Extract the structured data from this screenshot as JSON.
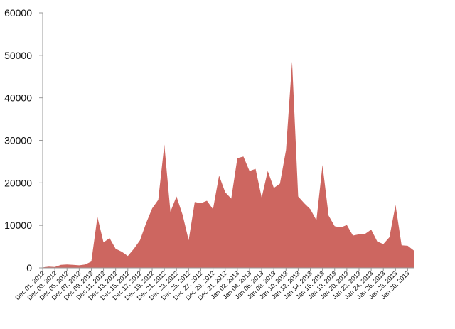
{
  "chart_data": {
    "type": "area",
    "title": "",
    "xlabel": "",
    "ylabel": "",
    "ylim": [
      0,
      60000
    ],
    "yticks": [
      0,
      10000,
      20000,
      30000,
      40000,
      50000,
      60000
    ],
    "ytick_labels": [
      "0",
      "10000",
      "20000",
      "30000",
      "40000",
      "50000",
      "60000"
    ],
    "grid": false,
    "legend": "none",
    "fill_color": "#cd6660",
    "x": [
      "Dec 01, 2012",
      "Dec 02, 2012",
      "Dec 03, 2012",
      "Dec 04, 2012",
      "Dec 05, 2012",
      "Dec 06, 2012",
      "Dec 07, 2012",
      "Dec 08, 2012",
      "Dec 09, 2012",
      "Dec 10, 2012",
      "Dec 11, 2012",
      "Dec 12, 2012",
      "Dec 13, 2012",
      "Dec 14, 2012",
      "Dec 15, 2012",
      "Dec 16, 2012",
      "Dec 17, 2012",
      "Dec 18, 2012",
      "Dec 19, 2012",
      "Dec 20, 2012",
      "Dec 21, 2012",
      "Dec 22, 2012",
      "Dec 23, 2012",
      "Dec 24, 2012",
      "Dec 25, 2012",
      "Dec 26, 2012",
      "Dec 27, 2012",
      "Dec 28, 2012",
      "Dec 29, 2012",
      "Dec 30, 2012",
      "Dec 31, 2012",
      "Jan 01, 2013",
      "Jan 02, 2013",
      "Jan 03, 2013",
      "Jan 04, 2013",
      "Jan 05, 2013",
      "Jan 06, 2013",
      "Jan 07, 2013",
      "Jan 08, 2013",
      "Jan 09, 2013",
      "Jan 10, 2013",
      "Jan 11, 2013",
      "Jan 12, 2013",
      "Jan 13, 2013",
      "Jan 14, 2013",
      "Jan 15, 2013",
      "Jan 16, 2013",
      "Jan 17, 2013",
      "Jan 18, 2013",
      "Jan 19, 2013",
      "Jan 20, 2013",
      "Jan 21, 2013",
      "Jan 22, 2013",
      "Jan 23, 2013",
      "Jan 24, 2013",
      "Jan 25, 2013",
      "Jan 26, 2013",
      "Jan 27, 2013",
      "Jan 28, 2013",
      "Jan 29, 2013",
      "Jan 30, 2013",
      "Jan 31, 2013"
    ],
    "xtick_labels": [
      "Dec 01, 2012",
      "Dec 03, 2012",
      "Dec 05, 2012",
      "Dec 07, 2012",
      "Dec 09, 2012",
      "Dec 11, 2012",
      "Dec 13, 2012",
      "Dec 15, 2012",
      "Dec 17, 2012",
      "Dec 19, 2012",
      "Dec 21, 2012",
      "Dec 23, 2012",
      "Dec 25, 2012",
      "Dec 27, 2012",
      "Dec 29, 2012",
      "Dec 31, 2012",
      "Jan 02, 2013",
      "Jan 04, 2013",
      "Jan 06, 2013",
      "Jan 08, 2013",
      "Jan 10, 2013",
      "Jan 12, 2013",
      "Jan 14, 2013",
      "Jan 16, 2013",
      "Jan 18, 2013",
      "Jan 20, 2013",
      "Jan 22, 2013",
      "Jan 24, 2013",
      "Jan 26, 2013",
      "Jan 28, 2013",
      "Jan 30, 2013"
    ],
    "series": [
      {
        "values": [
          100,
          300,
          200,
          700,
          800,
          700,
          600,
          800,
          1500,
          12000,
          6000,
          7000,
          4500,
          3800,
          2800,
          4500,
          6500,
          10500,
          14000,
          16000,
          29000,
          13200,
          16800,
          12500,
          6500,
          15500,
          15200,
          15800,
          13800,
          21700,
          17800,
          16300,
          25800,
          26200,
          22800,
          23300,
          16500,
          22800,
          18800,
          19800,
          27700,
          48500,
          16800,
          15200,
          13800,
          11200,
          24200,
          12300,
          9800,
          9500,
          10100,
          7600,
          7900,
          8000,
          9000,
          6200,
          5600,
          7200,
          14800,
          5300,
          5200,
          4100
        ]
      }
    ]
  }
}
